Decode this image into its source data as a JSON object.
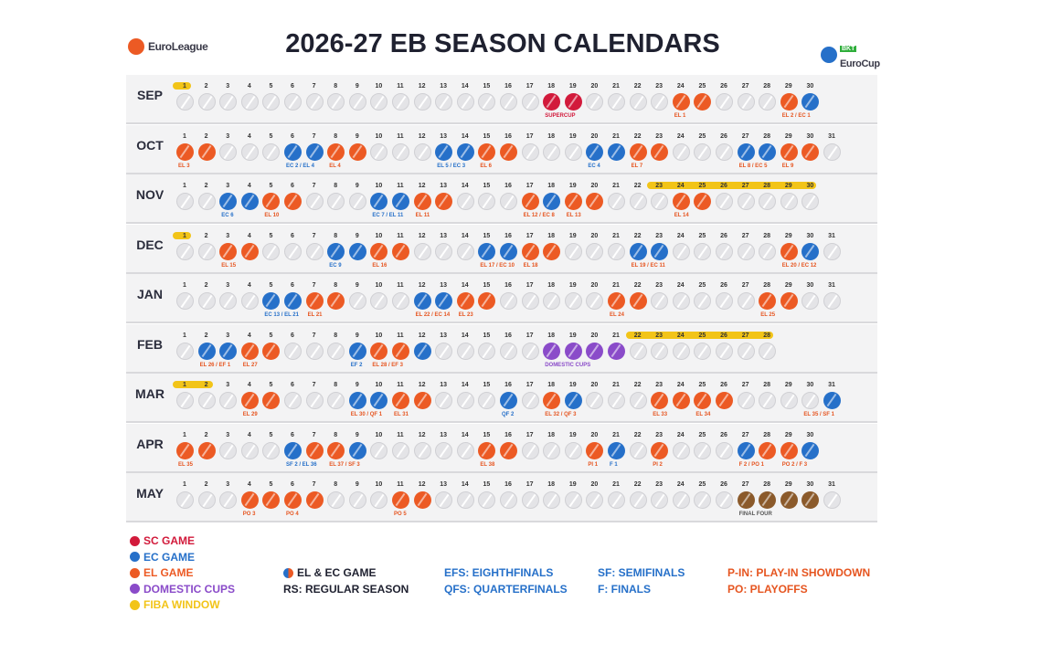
{
  "header": {
    "title": "2026-27 EB SEASON CALENDARS",
    "left_logo": "EuroLeague",
    "right_logo": "EuroCup",
    "right_logo_tag": "BKT"
  },
  "colors": {
    "el": "#ec5a24",
    "ec": "#2670c9",
    "sc": "#d21a3b",
    "dc": "#8a4bc9",
    "fiba": "#f2c418",
    "ff": "#8b5a2b"
  },
  "months": [
    {
      "name": "SEP",
      "days": 30,
      "startCol": 0,
      "fiba": [
        1
      ],
      "games": {
        "18": "sc",
        "19": "sc",
        "24": "el",
        "25": "el",
        "29": "el",
        "30": "ec"
      },
      "labels": [
        {
          "day": 18,
          "text": "SUPERCUP",
          "type": "sc"
        },
        {
          "day": 24,
          "text": "EL 1",
          "type": "el"
        },
        {
          "day": 29,
          "text": "EL 2 / EC 1",
          "type": "el"
        }
      ]
    },
    {
      "name": "OCT",
      "days": 31,
      "startCol": 0,
      "fiba": [],
      "games": {
        "1": "el",
        "2": "el",
        "6": "ec",
        "7": "ec",
        "8": "el",
        "9": "el",
        "13": "ec",
        "14": "ec",
        "15": "el",
        "16": "el",
        "20": "ec",
        "21": "ec",
        "22": "el",
        "23": "el",
        "27": "ec",
        "28": "ec",
        "29": "el",
        "30": "el"
      },
      "labels": [
        {
          "day": 1,
          "text": "EL 3",
          "type": "el"
        },
        {
          "day": 6,
          "text": "EC 2 / EL 4",
          "type": "ec"
        },
        {
          "day": 8,
          "text": "EL 4",
          "type": "el"
        },
        {
          "day": 13,
          "text": "EL 5 / EC 3",
          "type": "ec"
        },
        {
          "day": 15,
          "text": "EL 6",
          "type": "el"
        },
        {
          "day": 20,
          "text": "EC 4",
          "type": "ec"
        },
        {
          "day": 22,
          "text": "EL 7",
          "type": "el"
        },
        {
          "day": 27,
          "text": "EL 8 / EC 5",
          "type": "el"
        },
        {
          "day": 29,
          "text": "EL 9",
          "type": "el"
        }
      ]
    },
    {
      "name": "NOV",
      "days": 30,
      "startCol": 0,
      "fiba": [
        23,
        24,
        25,
        26,
        27,
        28,
        29,
        30
      ],
      "games": {
        "3": "ec",
        "4": "ec",
        "5": "el",
        "6": "el",
        "10": "ec",
        "11": "ec",
        "12": "el",
        "13": "el",
        "17": "el",
        "18": "ec",
        "19": "el",
        "20": "el",
        "24": "el",
        "25": "el"
      },
      "labels": [
        {
          "day": 3,
          "text": "EC 6",
          "type": "ec"
        },
        {
          "day": 5,
          "text": "EL 10",
          "type": "el"
        },
        {
          "day": 10,
          "text": "EC 7 / EL 11",
          "type": "ec"
        },
        {
          "day": 12,
          "text": "EL 11",
          "type": "el"
        },
        {
          "day": 17,
          "text": "EL 12 / EC 8",
          "type": "el"
        },
        {
          "day": 19,
          "text": "EL 13",
          "type": "el"
        },
        {
          "day": 24,
          "text": "EL 14",
          "type": "el"
        }
      ]
    },
    {
      "name": "DEC",
      "days": 31,
      "startCol": 0,
      "fiba": [
        1
      ],
      "games": {
        "3": "el",
        "4": "el",
        "8": "ec",
        "9": "ec",
        "10": "el",
        "11": "el",
        "15": "ec",
        "16": "ec",
        "17": "el",
        "18": "el",
        "22": "ec",
        "23": "ec",
        "29": "el",
        "30": "ec"
      },
      "labels": [
        {
          "day": 3,
          "text": "EL 15",
          "type": "el"
        },
        {
          "day": 8,
          "text": "EC 9",
          "type": "ec"
        },
        {
          "day": 10,
          "text": "EL 16",
          "type": "el"
        },
        {
          "day": 15,
          "text": "EL 17 / EC 10",
          "type": "el"
        },
        {
          "day": 17,
          "text": "EL 18",
          "type": "el"
        },
        {
          "day": 22,
          "text": "EL 19 / EC 11",
          "type": "el"
        },
        {
          "day": 29,
          "text": "EL 20 / EC 12",
          "type": "el"
        }
      ]
    },
    {
      "name": "JAN",
      "days": 31,
      "startCol": 0,
      "fiba": [],
      "games": {
        "5": "ec",
        "6": "ec",
        "7": "el",
        "8": "el",
        "12": "ec",
        "13": "ec",
        "14": "el",
        "15": "el",
        "21": "el",
        "22": "el",
        "28": "el",
        "29": "el"
      },
      "labels": [
        {
          "day": 5,
          "text": "EC 13 / EL 21",
          "type": "ec"
        },
        {
          "day": 7,
          "text": "EL 21",
          "type": "el"
        },
        {
          "day": 12,
          "text": "EL 22 / EC 14",
          "type": "el"
        },
        {
          "day": 14,
          "text": "EL 23",
          "type": "el"
        },
        {
          "day": 21,
          "text": "EL 24",
          "type": "el"
        },
        {
          "day": 28,
          "text": "EL 25",
          "type": "el"
        }
      ]
    },
    {
      "name": "FEB",
      "days": 28,
      "startCol": 0,
      "fiba": [
        22,
        23,
        24,
        25,
        26,
        27,
        28
      ],
      "games": {
        "2": "ec",
        "3": "ec",
        "4": "el",
        "5": "el",
        "9": "ec",
        "10": "el",
        "11": "el",
        "12": "ec",
        "18": "dc",
        "19": "dc",
        "20": "dc",
        "21": "dc"
      },
      "labels": [
        {
          "day": 2,
          "text": "EL 26 / EF 1",
          "type": "el"
        },
        {
          "day": 4,
          "text": "EL 27",
          "type": "el"
        },
        {
          "day": 9,
          "text": "EF 2",
          "type": "ec"
        },
        {
          "day": 10,
          "text": "EL 28 / EF 3",
          "type": "el"
        },
        {
          "day": 18,
          "text": "DOMESTIC CUPS",
          "type": "dc"
        }
      ]
    },
    {
      "name": "MAR",
      "days": 31,
      "startCol": 0,
      "fiba": [
        1,
        2
      ],
      "games": {
        "4": "el",
        "5": "el",
        "9": "ec",
        "10": "ec",
        "11": "el",
        "12": "el",
        "16": "ec",
        "18": "el",
        "19": "ec",
        "23": "el",
        "24": "el",
        "25": "el",
        "26": "el",
        "31": "ec"
      },
      "labels": [
        {
          "day": 4,
          "text": "EL 29",
          "type": "el"
        },
        {
          "day": 9,
          "text": "EL 30 / QF 1",
          "type": "el"
        },
        {
          "day": 11,
          "text": "EL 31",
          "type": "el"
        },
        {
          "day": 16,
          "text": "QF 2",
          "type": "ec"
        },
        {
          "day": 18,
          "text": "EL 32 / QF 3",
          "type": "el"
        },
        {
          "day": 23,
          "text": "EL 33",
          "type": "el"
        },
        {
          "day": 25,
          "text": "EL 34",
          "type": "el"
        },
        {
          "day": 30,
          "text": "EL 35 / SF 1",
          "type": "el"
        }
      ]
    },
    {
      "name": "APR",
      "days": 30,
      "startCol": 0,
      "fiba": [],
      "games": {
        "1": "el",
        "2": "el",
        "6": "ec",
        "7": "el",
        "8": "el",
        "9": "ec",
        "15": "el",
        "16": "el",
        "20": "el",
        "21": "ec",
        "23": "el",
        "27": "ec",
        "28": "el",
        "29": "el",
        "30": "ec"
      },
      "labels": [
        {
          "day": 1,
          "text": "EL 35",
          "type": "el"
        },
        {
          "day": 6,
          "text": "SF 2 / EL 36",
          "type": "ec"
        },
        {
          "day": 8,
          "text": "EL 37 / SF 3",
          "type": "el"
        },
        {
          "day": 15,
          "text": "EL 38",
          "type": "el"
        },
        {
          "day": 20,
          "text": "PI 1",
          "type": "el"
        },
        {
          "day": 21,
          "text": "F 1",
          "type": "ec"
        },
        {
          "day": 23,
          "text": "PI 2",
          "type": "el"
        },
        {
          "day": 27,
          "text": "F 2 / PO 1",
          "type": "el"
        },
        {
          "day": 29,
          "text": "PO 2 / F 3",
          "type": "el"
        }
      ]
    },
    {
      "name": "MAY",
      "days": 31,
      "startCol": 0,
      "fiba": [],
      "games": {
        "4": "el",
        "5": "el",
        "6": "el",
        "7": "el",
        "11": "el",
        "12": "el",
        "27": "ff",
        "28": "ff",
        "29": "ff",
        "30": "ff"
      },
      "labels": [
        {
          "day": 4,
          "text": "PO 3",
          "type": "el"
        },
        {
          "day": 6,
          "text": "PO 4",
          "type": "el"
        },
        {
          "day": 11,
          "text": "PO 5",
          "type": "el"
        },
        {
          "day": 27,
          "text": "FINAL FOUR",
          "type": "ff"
        }
      ]
    }
  ],
  "legend": [
    {
      "text": "SC GAME",
      "type": "sc",
      "icon": "ball"
    },
    {
      "text": "EC GAME",
      "type": "ec",
      "icon": "ball"
    },
    {
      "text": "EL GAME",
      "type": "el",
      "icon": "ball"
    },
    {
      "text": "DOMESTIC CUPS",
      "type": "dc",
      "icon": "ball"
    },
    {
      "text": "FIBA WINDOW",
      "type": "fiba",
      "icon": "dot"
    }
  ],
  "legend_mid": [
    {
      "text": "EL & EC GAME",
      "color": "#1f2130",
      "icon": "ball"
    },
    {
      "text": "RS: REGULAR SEASON",
      "color": "#1f2130"
    }
  ],
  "legend_abbr": [
    {
      "text": "EFS: EIGHTHFINALS",
      "color": "#2670c9"
    },
    {
      "text": "QFS: QUARTERFINALS",
      "color": "#2670c9"
    },
    {
      "text": "SF: SEMIFINALS",
      "color": "#2670c9"
    },
    {
      "text": "F: FINALS",
      "color": "#2670c9"
    },
    {
      "text": "P-IN: PLAY-IN SHOWDOWN",
      "color": "#e65520"
    },
    {
      "text": "PO: PLAYOFFS",
      "color": "#e65520"
    }
  ]
}
